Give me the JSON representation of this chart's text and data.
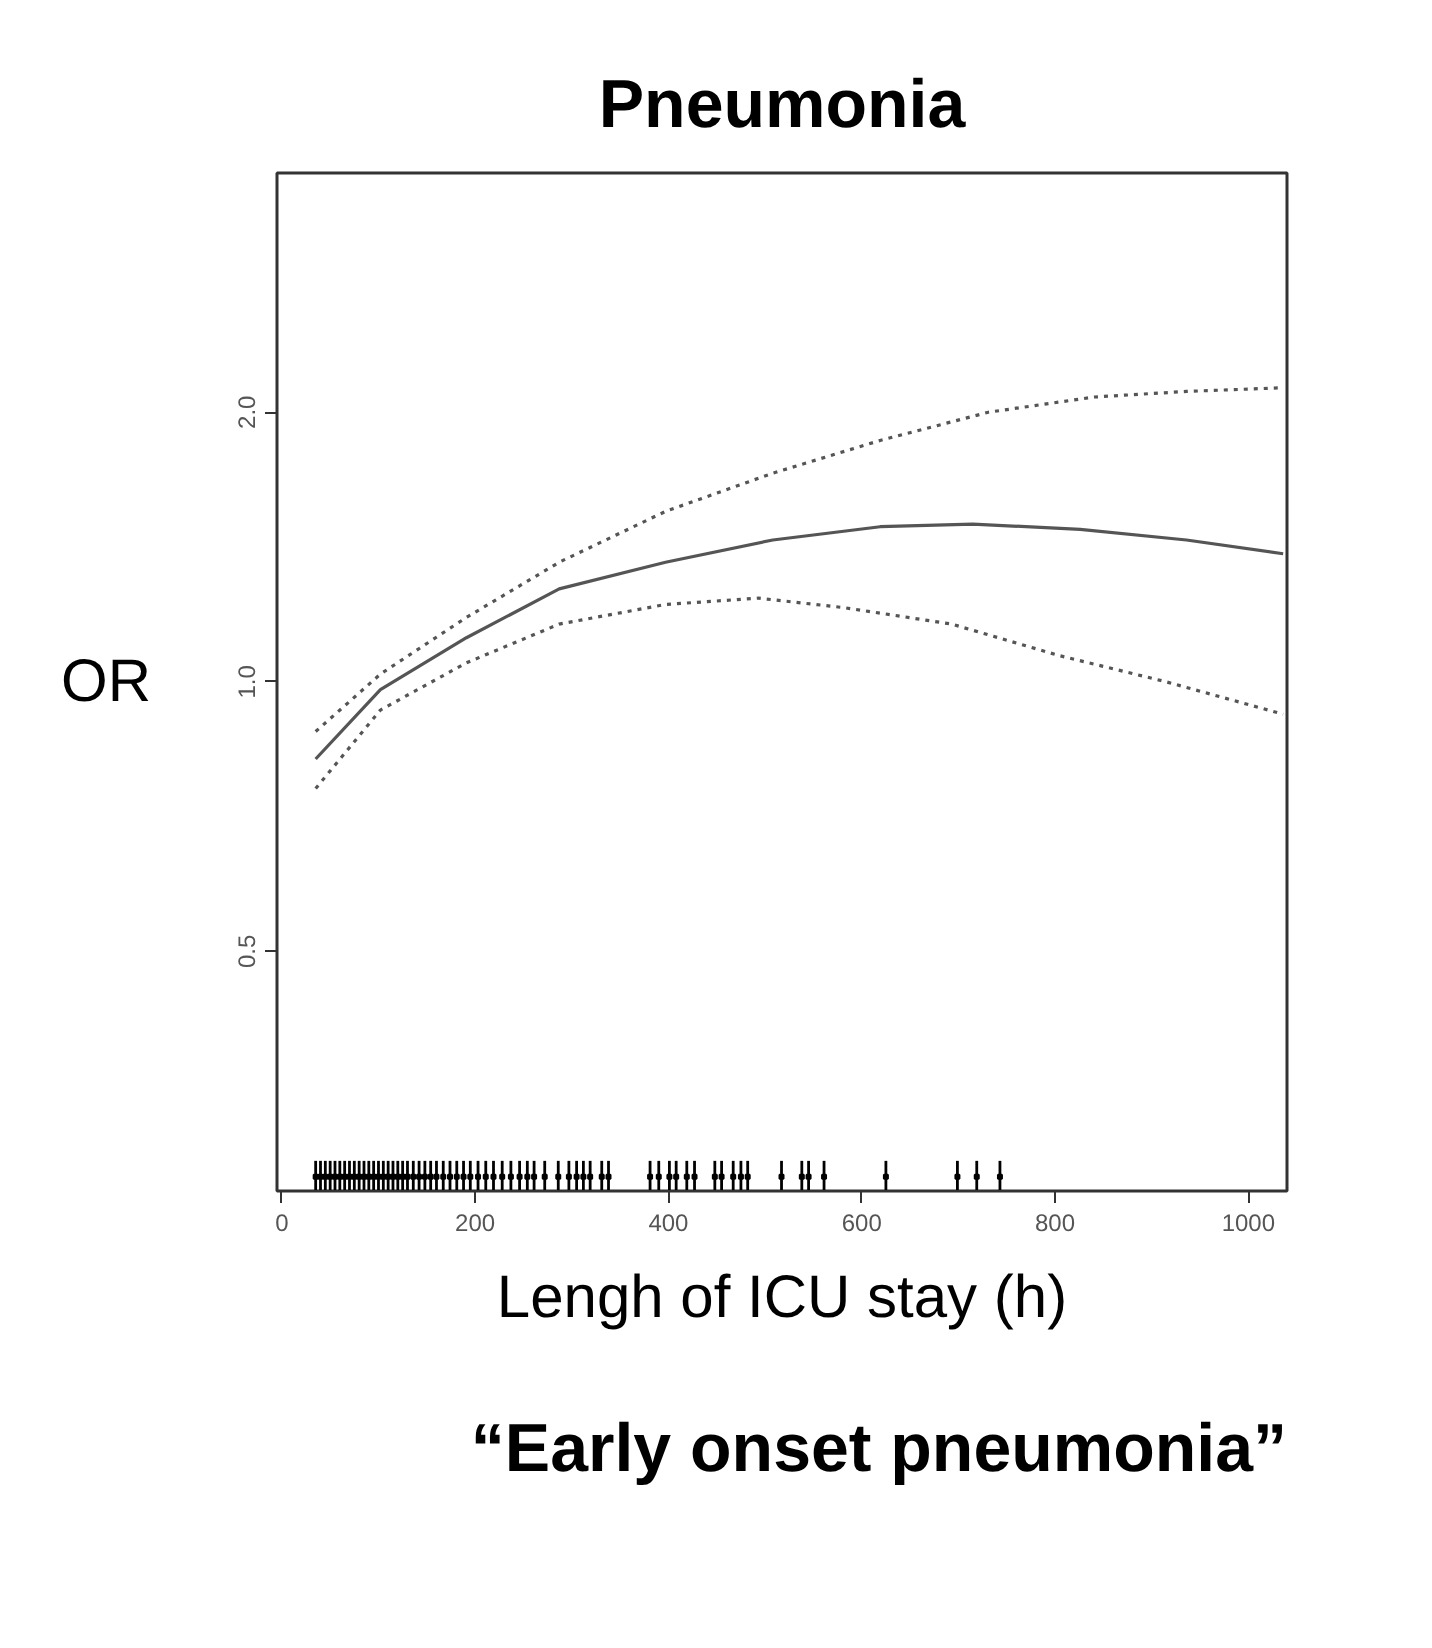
{
  "chart_data": {
    "type": "line",
    "title": "Pneumonia",
    "xlabel": "Lengh of ICU stay (h)",
    "ylabel": "OR",
    "log": "y",
    "xlim": [
      -5,
      1040
    ],
    "ylim": [
      0.27,
      3.7
    ],
    "xticks": [
      0,
      200,
      400,
      600,
      800,
      1000
    ],
    "yticks": [
      {
        "value": 0.5,
        "label": "0.5"
      },
      {
        "value": 1,
        "label": "1.0"
      },
      {
        "value": 2,
        "label": "2.0"
      }
    ],
    "grid": false,
    "annotations": [
      "“Early onset pneumonia”"
    ],
    "series": [
      {
        "color": "#555555",
        "line_style": "solid",
        "x": [
          35,
          102,
          191,
          287,
          397,
          508,
          619,
          715,
          826,
          936,
          1036
        ],
        "values": [
          0.82,
          0.98,
          1.12,
          1.27,
          1.36,
          1.44,
          1.49,
          1.5,
          1.48,
          1.44,
          1.39
        ]
      },
      {
        "color": "#555555",
        "line_style": "dotted",
        "x": [
          35,
          102,
          191,
          287,
          397,
          508,
          619,
          731,
          841,
          936,
          1036
        ],
        "values": [
          0.88,
          1.02,
          1.18,
          1.36,
          1.55,
          1.71,
          1.86,
          2.0,
          2.08,
          2.11,
          2.13
        ]
      },
      {
        "color": "#555555",
        "line_style": "dotted",
        "x": [
          35,
          102,
          191,
          287,
          397,
          493,
          582,
          693,
          804,
          915,
          1036
        ],
        "values": [
          0.76,
          0.93,
          1.05,
          1.16,
          1.22,
          1.24,
          1.21,
          1.16,
          1.07,
          1.0,
          0.92
        ]
      },
      {
        "type": "scatter",
        "color": "#000000",
        "x": [
          35,
          40,
          45,
          50,
          55,
          60,
          65,
          70,
          75,
          80,
          85,
          90,
          95,
          100,
          105,
          110,
          115,
          120,
          125,
          130,
          136,
          142,
          148,
          154,
          160,
          167,
          174,
          181,
          188,
          195,
          203,
          211,
          219,
          228,
          237,
          246,
          254,
          261,
          272,
          286,
          297,
          305,
          312,
          319,
          331,
          338,
          381,
          390,
          401,
          408,
          419,
          427,
          448,
          455,
          467,
          475,
          482,
          517,
          538,
          545,
          561,
          625,
          699,
          719,
          743
        ],
        "values": [
          0.28,
          0.28,
          0.28,
          0.28,
          0.28,
          0.28,
          0.28,
          0.28,
          0.28,
          0.28,
          0.28,
          0.28,
          0.28,
          0.28,
          0.28,
          0.28,
          0.28,
          0.28,
          0.28,
          0.28,
          0.28,
          0.28,
          0.28,
          0.28,
          0.28,
          0.28,
          0.28,
          0.28,
          0.28,
          0.28,
          0.28,
          0.28,
          0.28,
          0.28,
          0.28,
          0.28,
          0.28,
          0.28,
          0.28,
          0.28,
          0.28,
          0.28,
          0.28,
          0.28,
          0.28,
          0.28,
          0.28,
          0.28,
          0.28,
          0.28,
          0.28,
          0.28,
          0.28,
          0.28,
          0.28,
          0.28,
          0.28,
          0.28,
          0.28,
          0.28,
          0.28,
          0.28,
          0.28,
          0.28,
          0.28
        ]
      }
    ]
  }
}
